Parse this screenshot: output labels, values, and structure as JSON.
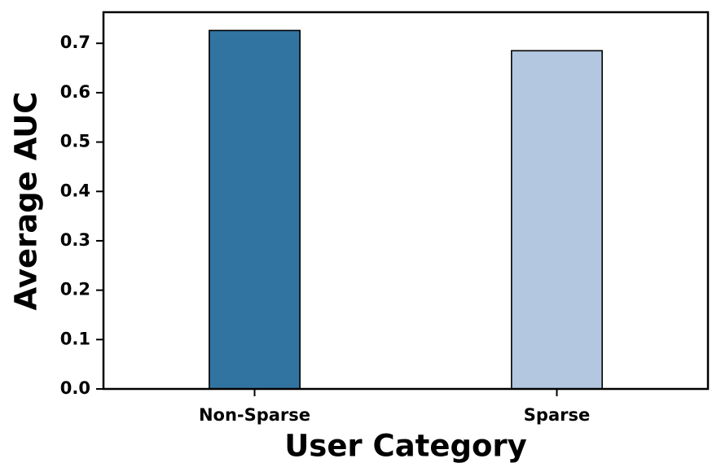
{
  "chart_data": {
    "type": "bar",
    "categories": [
      "Non-Sparse",
      "Sparse"
    ],
    "values": [
      0.726,
      0.685
    ],
    "colors": [
      "#3274a1",
      "#b3c7e0"
    ],
    "x_label": "User Category",
    "y_label": "Average AUC",
    "ylim": [
      0,
      0.763
    ],
    "yticks": [
      {
        "value": 0,
        "label": "0.0"
      },
      0.1,
      0.2,
      0.3,
      0.4,
      0.5,
      0.6,
      0.7
    ],
    "grid": false
  }
}
